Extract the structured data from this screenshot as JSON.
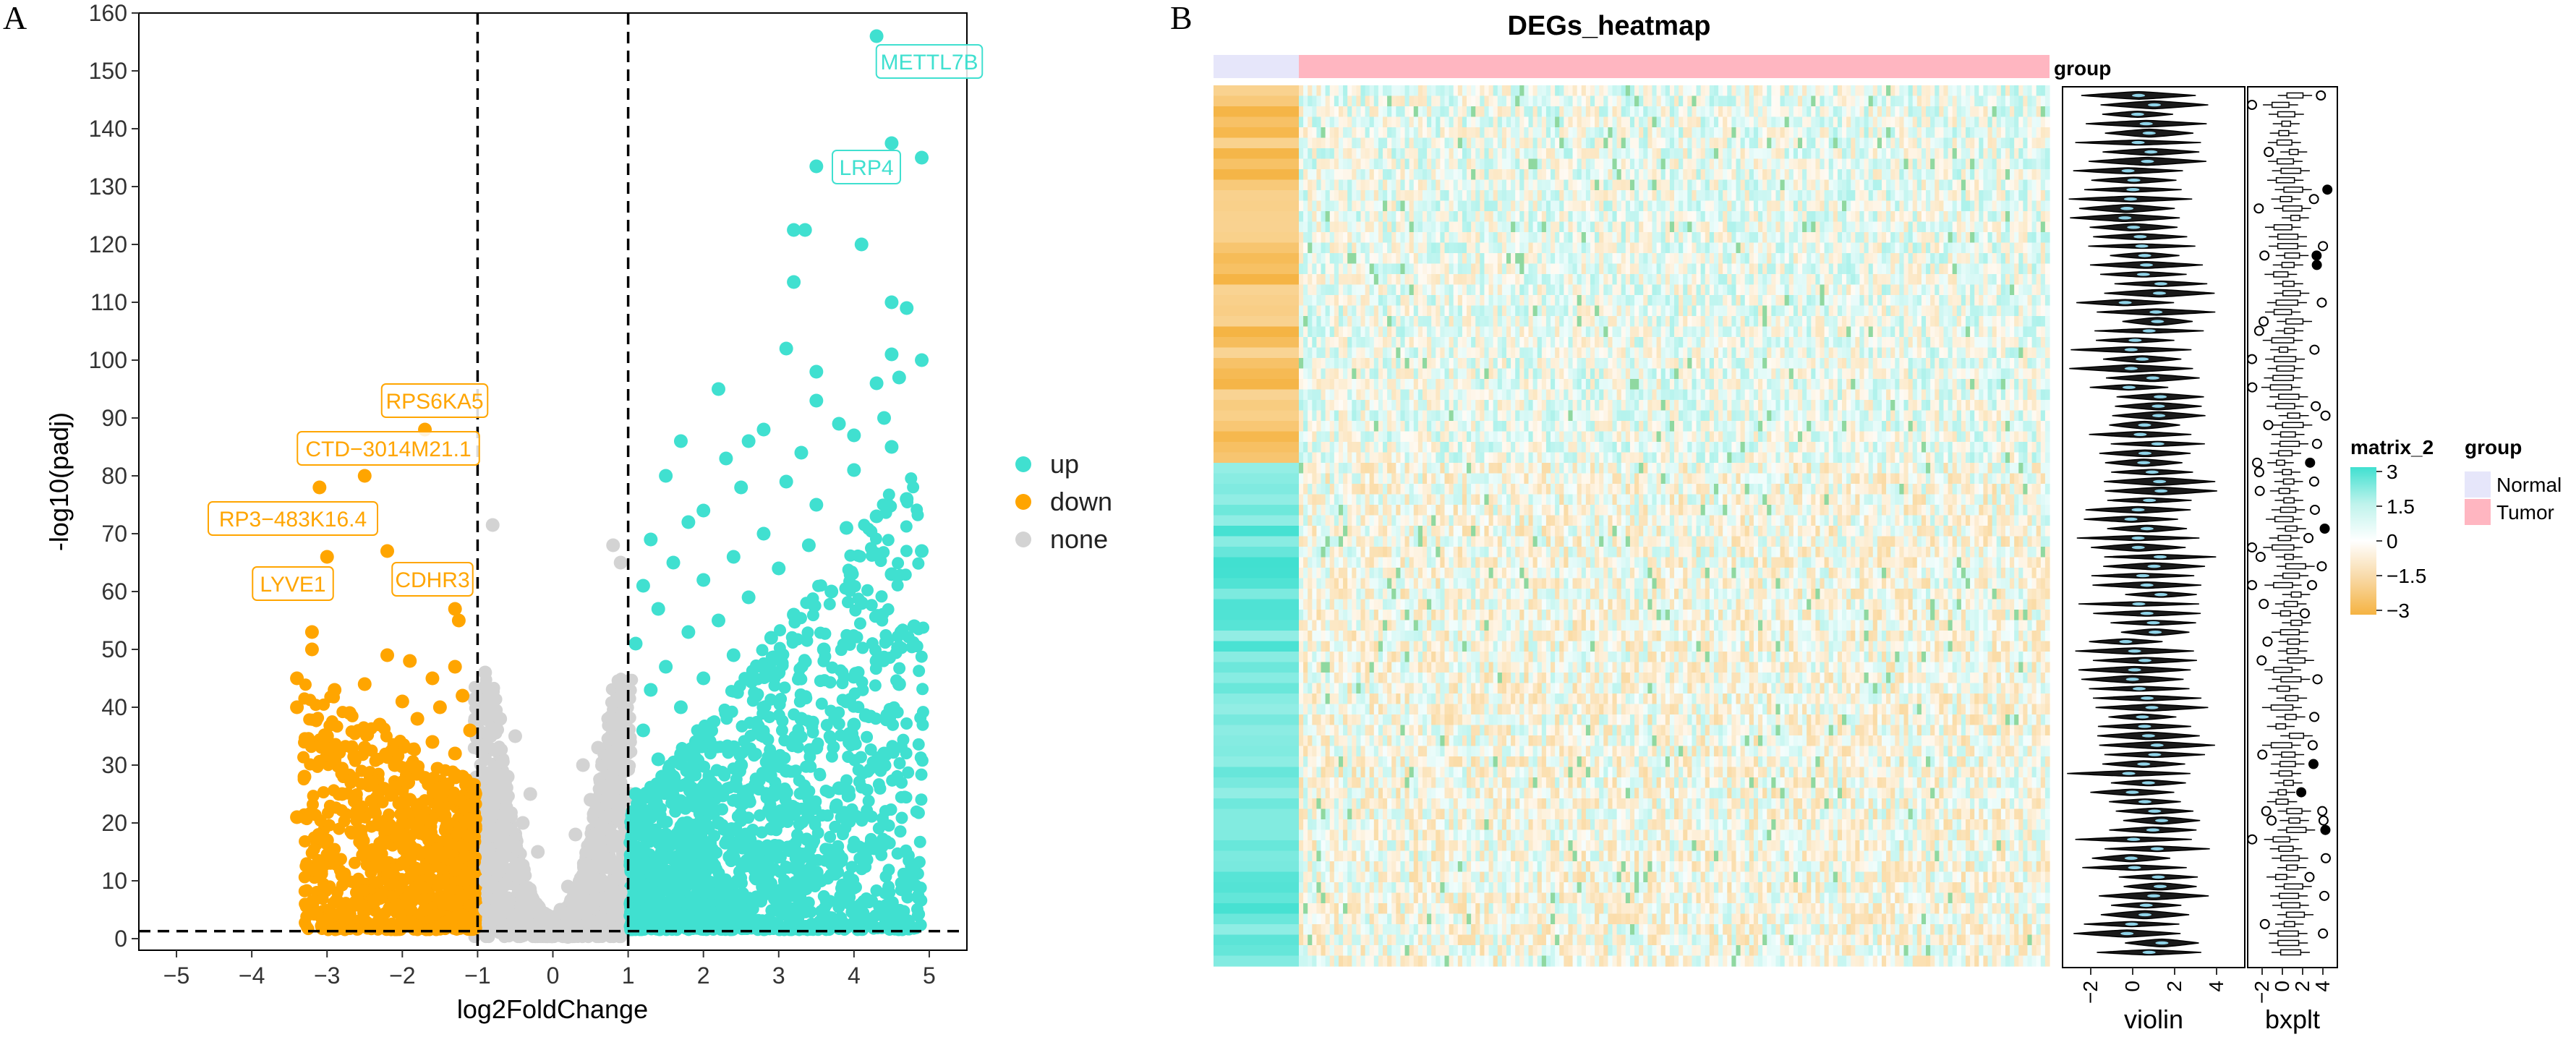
{
  "panels": {
    "a": "A",
    "b": "B"
  },
  "chart_data": [
    {
      "type": "scatter",
      "name": "volcano-plot",
      "title": "",
      "xlabel": "log2FoldChange",
      "ylabel": "-log10(padj)",
      "xlim": [
        -5.5,
        5.5
      ],
      "ylim": [
        -2,
        160
      ],
      "xticks": [
        -5,
        -4,
        -3,
        -2,
        -1,
        0,
        1,
        2,
        3,
        4,
        5
      ],
      "xtick_labels": [
        "−5",
        "−4",
        "−3",
        "−2",
        "−1",
        "0",
        "1",
        "2",
        "3",
        "4",
        "5"
      ],
      "yticks": [
        0,
        10,
        20,
        30,
        40,
        50,
        60,
        70,
        80,
        90,
        100,
        110,
        120,
        130,
        140,
        150,
        160
      ],
      "thresholds": {
        "log2fc": [
          -1,
          1
        ],
        "padj_line": 1.3
      },
      "grid": false,
      "legend_position": "right",
      "series": [
        {
          "name": "up",
          "color": "#40E0D0",
          "points": [
            [
              4.3,
              156
            ],
            [
              4.5,
              137.5
            ],
            [
              4.9,
              135
            ],
            [
              3.5,
              133.5
            ],
            [
              3.2,
              122.5
            ],
            [
              3.35,
              122.5
            ],
            [
              4.1,
              120
            ],
            [
              3.2,
              113.5
            ],
            [
              4.5,
              110
            ],
            [
              4.7,
              109
            ],
            [
              3.1,
              102
            ],
            [
              4.5,
              101
            ],
            [
              4.9,
              100
            ],
            [
              3.5,
              98
            ],
            [
              4.6,
              97
            ],
            [
              4.3,
              96
            ],
            [
              2.2,
              95
            ],
            [
              3.5,
              93
            ],
            [
              4.4,
              90
            ],
            [
              3.8,
              89
            ],
            [
              2.8,
              88
            ],
            [
              4.0,
              87
            ],
            [
              1.7,
              86
            ],
            [
              2.6,
              86
            ],
            [
              4.5,
              85
            ],
            [
              3.3,
              84
            ],
            [
              2.3,
              83
            ],
            [
              4.0,
              81
            ],
            [
              1.5,
              80
            ],
            [
              3.1,
              79
            ],
            [
              2.5,
              78
            ],
            [
              4.7,
              76
            ],
            [
              3.5,
              75
            ],
            [
              2.0,
              74
            ],
            [
              4.3,
              73
            ],
            [
              1.8,
              72
            ],
            [
              3.9,
              71
            ],
            [
              2.8,
              70
            ],
            [
              1.3,
              69
            ],
            [
              3.4,
              68
            ],
            [
              4.9,
              67
            ],
            [
              2.4,
              66
            ],
            [
              1.6,
              65
            ],
            [
              3.0,
              64
            ],
            [
              4.5,
              63
            ],
            [
              2.0,
              62
            ],
            [
              1.2,
              61
            ],
            [
              3.7,
              60
            ],
            [
              2.6,
              59
            ],
            [
              4.1,
              58
            ],
            [
              1.4,
              57
            ],
            [
              3.2,
              56
            ],
            [
              2.2,
              55
            ],
            [
              4.8,
              54
            ],
            [
              1.8,
              53
            ],
            [
              2.9,
              52
            ],
            [
              1.1,
              51
            ],
            [
              3.6,
              50
            ],
            [
              2.4,
              49
            ],
            [
              4.3,
              48
            ],
            [
              1.5,
              47
            ],
            [
              3.0,
              46
            ],
            [
              2.0,
              45
            ],
            [
              4.6,
              44
            ],
            [
              1.3,
              43
            ],
            [
              2.7,
              42
            ],
            [
              3.9,
              41
            ],
            [
              1.7,
              40
            ],
            [
              2.3,
              39
            ],
            [
              3.3,
              38
            ],
            [
              4.0,
              37
            ],
            [
              1.2,
              36
            ],
            [
              2.8,
              35
            ],
            [
              1.9,
              34
            ],
            [
              3.5,
              33
            ],
            [
              4.4,
              32
            ],
            [
              1.4,
              31
            ],
            [
              2.5,
              30
            ],
            [
              3.1,
              29
            ],
            [
              1.6,
              28
            ],
            [
              2.1,
              27
            ],
            [
              3.8,
              26
            ],
            [
              1.1,
              25
            ],
            [
              2.6,
              24
            ],
            [
              1.8,
              23
            ],
            [
              3.4,
              22
            ],
            [
              1.3,
              21
            ],
            [
              2.2,
              20
            ],
            [
              2.9,
              19
            ],
            [
              1.5,
              18
            ],
            [
              1.9,
              17
            ],
            [
              3.0,
              16
            ],
            [
              1.2,
              15
            ],
            [
              2.4,
              14
            ],
            [
              1.7,
              13
            ],
            [
              1.4,
              12
            ],
            [
              2.0,
              11
            ],
            [
              1.1,
              10
            ],
            [
              1.6,
              9
            ],
            [
              2.3,
              8
            ],
            [
              1.3,
              7
            ],
            [
              2.0,
              6
            ],
            [
              1.5,
              5
            ],
            [
              1.2,
              4
            ]
          ]
        },
        {
          "name": "down",
          "color": "#FFA500",
          "points": [
            [
              -1.7,
              88
            ],
            [
              -2.5,
              80
            ],
            [
              -2.2,
              67
            ],
            [
              -3.1,
              78
            ],
            [
              -3.0,
              66
            ],
            [
              -1.3,
              57
            ],
            [
              -1.25,
              55
            ],
            [
              -3.2,
              53
            ],
            [
              -3.2,
              50
            ],
            [
              -2.2,
              49
            ],
            [
              -1.9,
              48
            ],
            [
              -1.3,
              47
            ],
            [
              -3.4,
              45
            ],
            [
              -1.6,
              45
            ],
            [
              -2.5,
              44
            ],
            [
              -2.9,
              43
            ],
            [
              -1.2,
              42
            ],
            [
              -2.0,
              41
            ],
            [
              -3.4,
              40
            ],
            [
              -1.5,
              40
            ],
            [
              -2.7,
              39
            ],
            [
              -1.8,
              38
            ],
            [
              -2.3,
              37
            ],
            [
              -1.1,
              36
            ],
            [
              -3.0,
              35
            ],
            [
              -1.6,
              34
            ],
            [
              -2.5,
              33
            ],
            [
              -1.3,
              32
            ],
            [
              -2.9,
              31
            ],
            [
              -2.1,
              30
            ],
            [
              -1.8,
              29
            ],
            [
              -3.3,
              28
            ],
            [
              -1.2,
              28
            ],
            [
              -2.4,
              27
            ],
            [
              -1.5,
              26
            ],
            [
              -2.8,
              25
            ],
            [
              -1.9,
              24
            ],
            [
              -1.1,
              23
            ],
            [
              -2.6,
              22
            ],
            [
              -3.4,
              21
            ],
            [
              -1.4,
              20
            ],
            [
              -2.2,
              19
            ],
            [
              -1.7,
              18
            ],
            [
              -3.0,
              17
            ],
            [
              -1.2,
              16
            ],
            [
              -2.5,
              15
            ],
            [
              -1.6,
              14
            ],
            [
              -2.0,
              13
            ],
            [
              -1.3,
              12
            ],
            [
              -2.8,
              11
            ],
            [
              -1.5,
              10
            ],
            [
              -1.8,
              9
            ],
            [
              -1.1,
              8
            ],
            [
              -2.3,
              7
            ],
            [
              -1.4,
              6
            ],
            [
              -1.7,
              5
            ],
            [
              -1.2,
              4
            ],
            [
              -1.9,
              3
            ]
          ]
        },
        {
          "name": "none",
          "color": "#D3D3D3",
          "points": [
            [
              -0.8,
              71.5
            ],
            [
              0.8,
              68
            ],
            [
              0.9,
              65
            ],
            [
              -0.9,
              46
            ],
            [
              0.95,
              40
            ],
            [
              -0.7,
              38
            ],
            [
              0.8,
              37
            ],
            [
              -0.5,
              35
            ],
            [
              0.6,
              33
            ],
            [
              -0.9,
              31
            ],
            [
              0.4,
              30
            ],
            [
              -0.6,
              28
            ],
            [
              0.9,
              27
            ],
            [
              -0.3,
              25
            ],
            [
              0.5,
              24
            ],
            [
              -0.8,
              22
            ],
            [
              0.7,
              21
            ],
            [
              -0.4,
              20
            ],
            [
              0.3,
              18
            ],
            [
              -0.7,
              17
            ],
            [
              0.8,
              16
            ],
            [
              -0.2,
              15
            ],
            [
              0.6,
              14
            ],
            [
              -0.5,
              12
            ],
            [
              0.4,
              11
            ],
            [
              -0.9,
              10
            ],
            [
              0.2,
              9
            ],
            [
              -0.3,
              8
            ],
            [
              0.7,
              7
            ],
            [
              -0.6,
              6
            ],
            [
              0.1,
              5
            ],
            [
              -0.1,
              4
            ],
            [
              0.3,
              3
            ],
            [
              -0.4,
              3
            ],
            [
              0.5,
              2
            ],
            [
              -0.2,
              1
            ],
            [
              0.0,
              0.5
            ],
            [
              0.2,
              0.3
            ],
            [
              -0.6,
              2
            ],
            [
              0.8,
              4
            ],
            [
              -0.9,
              5
            ],
            [
              0.9,
              8
            ]
          ]
        }
      ],
      "annotations": [
        {
          "label": "METTL7B",
          "x": 4.3,
          "y": 156,
          "color": "#40E0D0"
        },
        {
          "label": "LRP4",
          "x": 3.5,
          "y": 133.5,
          "color": "#40E0D0"
        },
        {
          "label": "RPS6KA5",
          "x": -1.7,
          "y": 88,
          "color": "#FFA500"
        },
        {
          "label": "CTD−3014M21.1",
          "x": -2.5,
          "y": 80,
          "color": "#FFA500"
        },
        {
          "label": "RP3−483K16.4",
          "x": -3.1,
          "y": 78,
          "color": "#FFA500"
        },
        {
          "label": "LYVE1",
          "x": -3.0,
          "y": 66,
          "color": "#FFA500"
        },
        {
          "label": "CDHR3",
          "x": -2.2,
          "y": 67,
          "color": "#FFA500"
        }
      ],
      "legend": [
        {
          "label": "up",
          "color": "#40E0D0"
        },
        {
          "label": "down",
          "color": "#FFA500"
        },
        {
          "label": "none",
          "color": "#D3D3D3"
        }
      ]
    },
    {
      "type": "heatmap",
      "name": "degs-heatmap",
      "title": "DEGs_heatmap",
      "group_annotation_label": "group",
      "groups": [
        {
          "name": "Normal",
          "color": "#E6E6FA"
        },
        {
          "name": "Tumor",
          "color": "#FFB6C1"
        }
      ],
      "color_scale": {
        "name": "matrix_2",
        "breaks": [
          3,
          1.5,
          0,
          -1.5,
          -3
        ],
        "break_labels": [
          "3",
          "1.5",
          "0",
          "−1.5",
          "−3"
        ],
        "colors": [
          "#40E0D0",
          "#BFF3EC",
          "#FFFFFF",
          "#F8D9A6",
          "#F5B342"
        ]
      },
      "side_panels": [
        {
          "name": "violin",
          "xlim": [
            -3,
            5
          ],
          "xticks": [
            -2,
            0,
            2,
            4
          ],
          "xtick_labels": [
            "−2",
            "0",
            "2",
            "4"
          ]
        },
        {
          "name": "bxplt",
          "xlim": [
            -3,
            5
          ],
          "xticks": [
            -2,
            0,
            2,
            4
          ],
          "xtick_labels": [
            "−2",
            "0",
            "2",
            "4"
          ]
        }
      ],
      "legend_titles": {
        "matrix": "matrix_2",
        "group": "group"
      }
    }
  ]
}
